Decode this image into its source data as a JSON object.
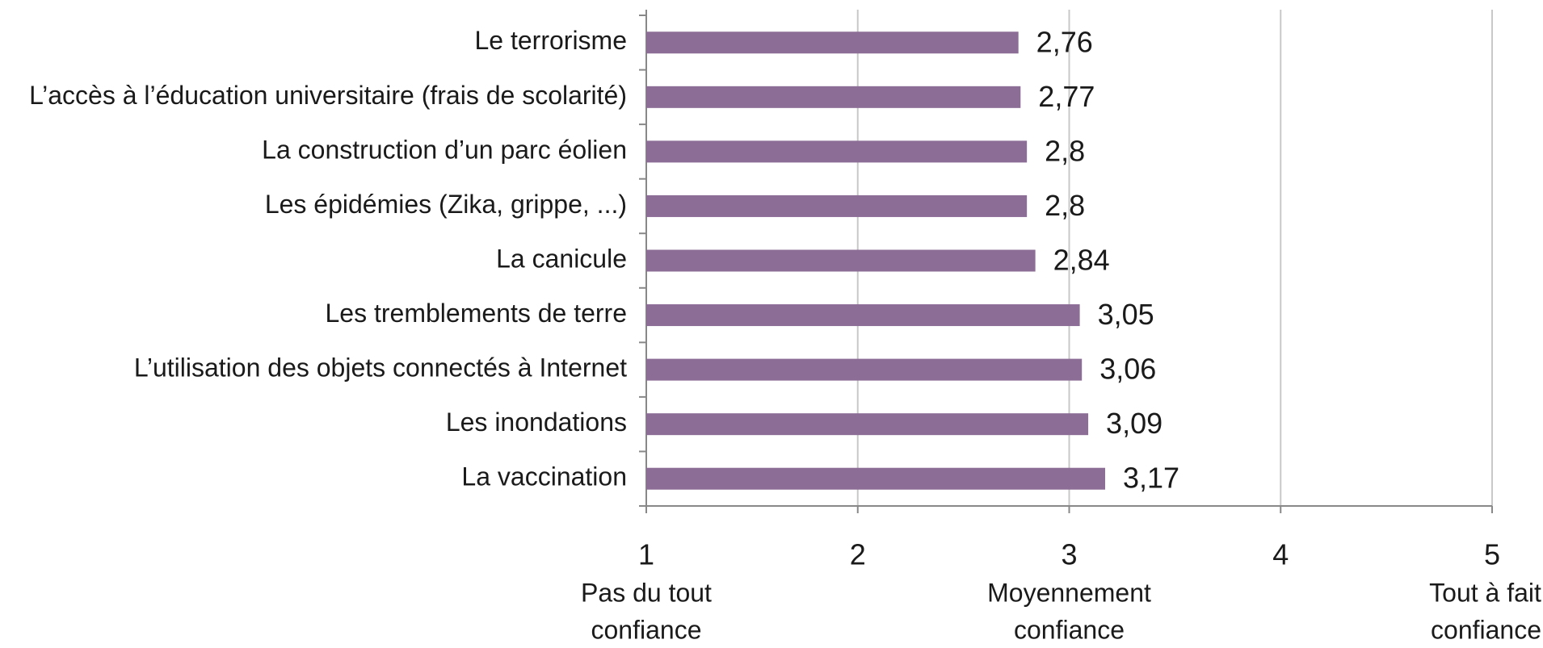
{
  "chart_data": {
    "type": "barh",
    "categories": [
      "Le terrorisme",
      "L’accès à l’éducation universitaire (frais de scolarité)",
      "La construction d’un parc éolien",
      "Les épidémies (Zika, grippe, ...)",
      "La canicule",
      "Les tremblements de terre",
      "L’utilisation des objets connectés à Internet",
      "Les inondations",
      "La vaccination"
    ],
    "values": [
      2.76,
      2.77,
      2.8,
      2.8,
      2.84,
      3.05,
      3.06,
      3.09,
      3.17
    ],
    "value_labels": [
      "2,76",
      "2,77",
      "2,8",
      "2,8",
      "2,84",
      "3,05",
      "3,06",
      "3,09",
      "3,17"
    ],
    "color": "#8c6d96",
    "xlim": [
      1,
      5
    ],
    "xticks": [
      1,
      2,
      3,
      4,
      5
    ],
    "grid": true,
    "annotations": [
      {
        "x": 1,
        "text": [
          "Pas du tout",
          "confiance"
        ]
      },
      {
        "x": 3,
        "text": [
          "Moyennement",
          "confiance"
        ]
      },
      {
        "x": 5,
        "text": [
          "Tout à fait",
          "confiance"
        ]
      }
    ]
  }
}
